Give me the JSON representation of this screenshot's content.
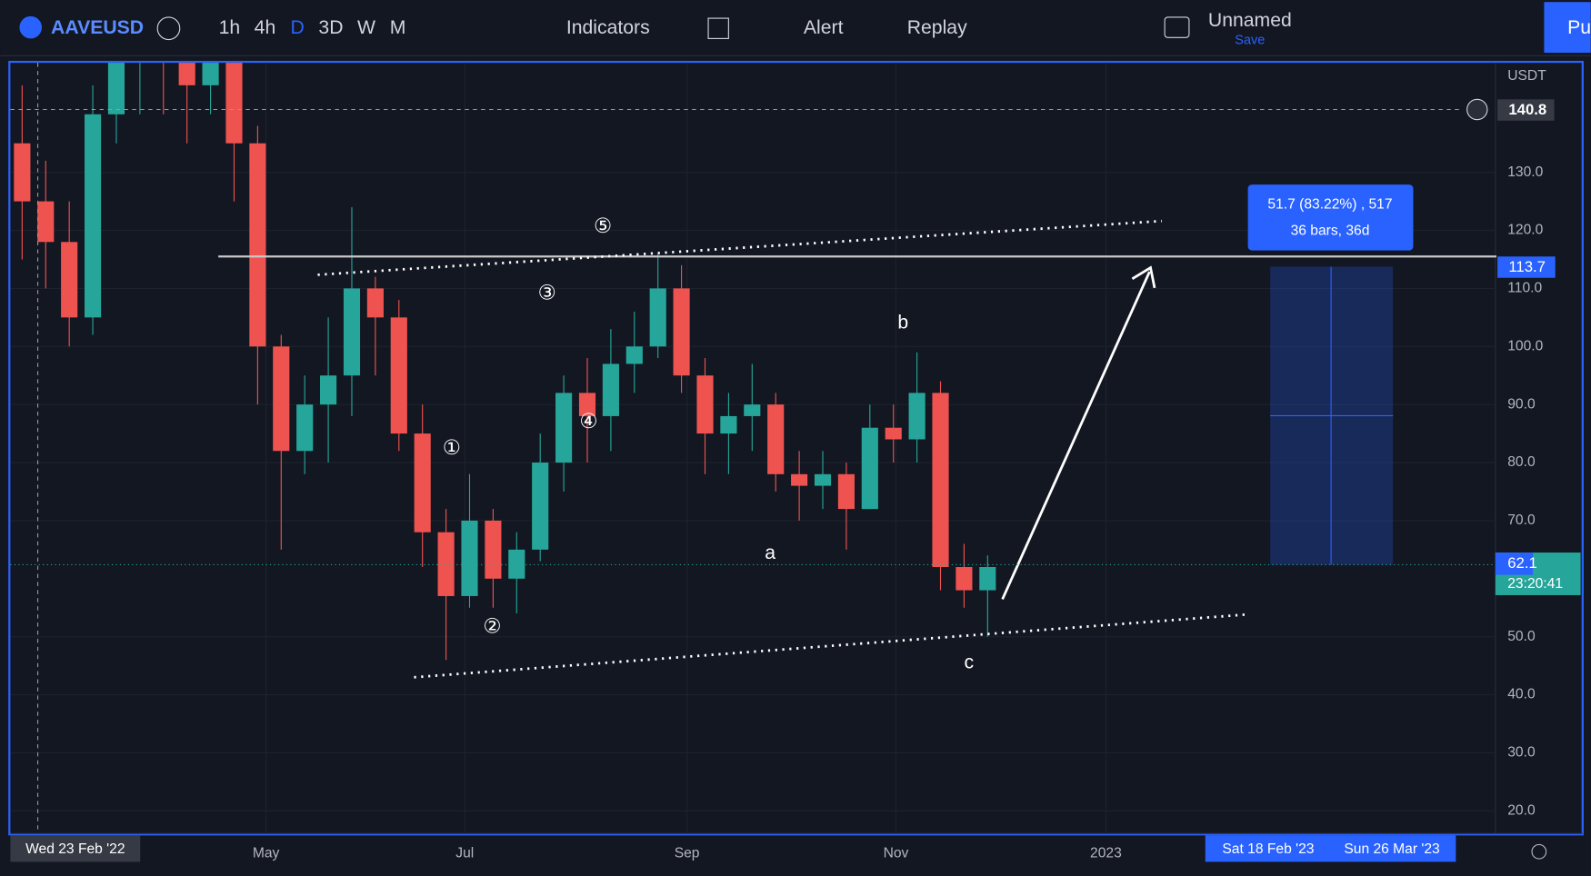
{
  "toolbar": {
    "symbol": "AAVEUSD",
    "intervals": [
      "1h",
      "4h",
      "D",
      "3D",
      "W",
      "M"
    ],
    "indicators": "Indicators",
    "alert": "Alert",
    "replay": "Replay",
    "layout_name": "Unnamed",
    "save": "Save",
    "publish": "Pu"
  },
  "price_axis": {
    "currency": "USDT",
    "price_labels": {
      "crosshair": "140.8",
      "target": "113.7",
      "last": "62.1",
      "countdown": "23:20:41"
    }
  },
  "time_axis": {
    "labels": [
      "May",
      "Jul",
      "Sep",
      "Nov",
      "2023"
    ],
    "crosshair_date": "Wed 23 Feb '22",
    "range_start": "Sat 18 Feb '23",
    "range_end": "Sun 26 Mar '23"
  },
  "annotations": {
    "waves": [
      "①",
      "②",
      "③",
      "④",
      "⑤"
    ],
    "corrections": [
      "a",
      "b",
      "c"
    ]
  },
  "measure": {
    "line1": "51.7 (83.22%) , 517",
    "line2": "36 bars, 36d"
  },
  "chart_data": {
    "type": "candlestick",
    "up_color": "#26a69a",
    "down_color": "#ef5350",
    "ylim": [
      16.11,
      148.86
    ],
    "yticks": [
      {
        "value": 130,
        "label": "130.0"
      },
      {
        "value": 120,
        "label": "120.0"
      },
      {
        "value": 110,
        "label": "110.0"
      },
      {
        "value": 100,
        "label": "100.0"
      },
      {
        "value": 90,
        "label": "90.0"
      },
      {
        "value": 80,
        "label": "80.0"
      },
      {
        "value": 70,
        "label": "70.0"
      },
      {
        "value": 50,
        "label": "50.0"
      },
      {
        "value": 40,
        "label": "40.0"
      },
      {
        "value": 30,
        "label": "30.0"
      },
      {
        "value": 20,
        "label": "20.0"
      }
    ],
    "grid": true,
    "candles": [
      [
        135,
        145,
        115,
        125
      ],
      [
        125,
        132,
        110,
        118
      ],
      [
        118,
        125,
        100,
        105
      ],
      [
        105,
        145,
        102,
        140
      ],
      [
        140,
        160,
        135,
        150
      ],
      [
        150,
        165,
        140,
        155
      ],
      [
        155,
        165,
        140,
        150
      ],
      [
        150,
        160,
        135,
        145
      ],
      [
        145,
        160,
        140,
        150
      ],
      [
        150,
        152,
        125,
        135
      ],
      [
        135,
        138,
        90,
        100
      ],
      [
        100,
        102,
        65,
        82
      ],
      [
        82,
        95,
        78,
        90
      ],
      [
        90,
        105,
        80,
        95
      ],
      [
        95,
        124,
        88,
        110
      ],
      [
        110,
        112,
        95,
        105
      ],
      [
        105,
        108,
        82,
        85
      ],
      [
        85,
        90,
        62,
        68
      ],
      [
        68,
        72,
        46,
        57
      ],
      [
        57,
        78,
        55,
        70
      ],
      [
        70,
        72,
        55,
        60
      ],
      [
        60,
        68,
        54,
        65
      ],
      [
        65,
        85,
        63,
        80
      ],
      [
        80,
        95,
        75,
        92
      ],
      [
        92,
        98,
        80,
        88
      ],
      [
        88,
        103,
        82,
        97
      ],
      [
        97,
        106,
        92,
        100
      ],
      [
        100,
        116,
        98,
        110
      ],
      [
        110,
        114,
        92,
        95
      ],
      [
        95,
        98,
        78,
        85
      ],
      [
        85,
        92,
        78,
        88
      ],
      [
        88,
        97,
        82,
        90
      ],
      [
        90,
        92,
        75,
        78
      ],
      [
        78,
        82,
        70,
        76
      ],
      [
        76,
        82,
        72,
        78
      ],
      [
        78,
        80,
        65,
        72
      ],
      [
        72,
        90,
        72,
        86
      ],
      [
        86,
        90,
        80,
        84
      ],
      [
        84,
        99,
        80,
        92
      ],
      [
        92,
        94,
        58,
        62
      ],
      [
        62,
        66,
        55,
        58
      ],
      [
        58,
        64,
        50,
        62
      ]
    ]
  }
}
